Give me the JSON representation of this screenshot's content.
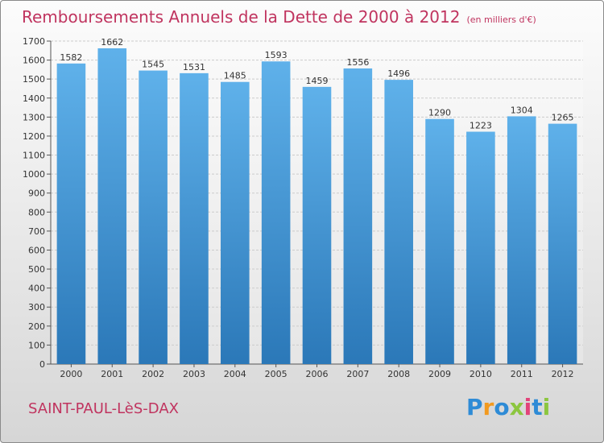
{
  "title": "Remboursements Annuels de la Dette de 2000 à 2012",
  "unit_note": "(en milliers d'€)",
  "location": "SAINT-PAUL-LèS-DAX",
  "brand": {
    "text": "Proxiti",
    "letters": [
      "P",
      "r",
      "o",
      "x",
      "i",
      "t",
      "i"
    ]
  },
  "colors": {
    "title": "#c0345f",
    "bar_top": "#5fb1ea",
    "bar_bottom": "#2b78b8",
    "grid": "#cccccc"
  },
  "chart_data": {
    "type": "bar",
    "categories": [
      "2000",
      "2001",
      "2002",
      "2003",
      "2004",
      "2005",
      "2006",
      "2007",
      "2008",
      "2009",
      "2010",
      "2011",
      "2012"
    ],
    "values": [
      1582,
      1662,
      1545,
      1531,
      1485,
      1593,
      1459,
      1556,
      1496,
      1290,
      1223,
      1304,
      1265
    ],
    "yticks": [
      "0",
      "100",
      "200",
      "300",
      "400",
      "500",
      "600",
      "700",
      "800",
      "900",
      "1000",
      "1100",
      "1200",
      "1300",
      "1400",
      "1500",
      "1600",
      "1700"
    ],
    "ylim": [
      0,
      1700
    ],
    "grid": true
  }
}
